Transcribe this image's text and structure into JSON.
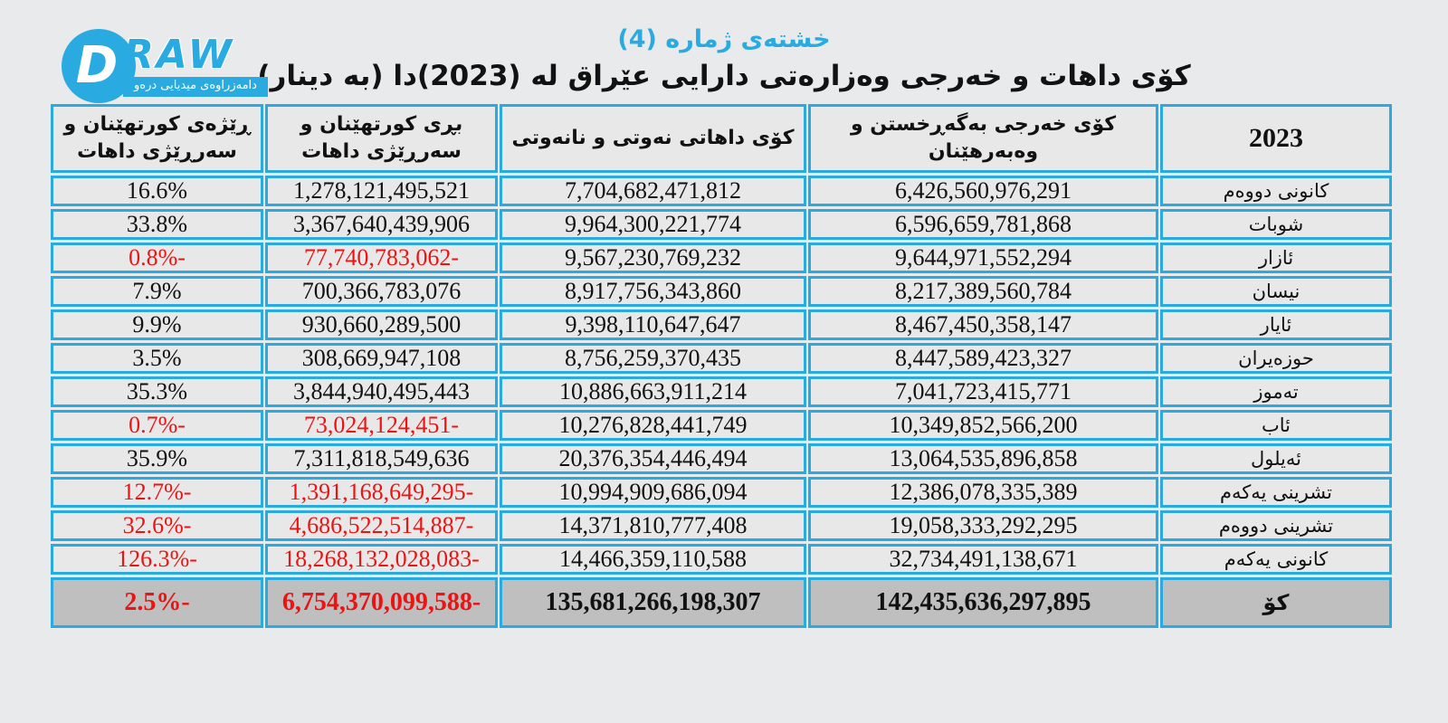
{
  "logo": {
    "d": "D",
    "raw": "RAW",
    "banner": "دامەزراوەی میدیایی درەو"
  },
  "header": {
    "table_number": "خشتەی ژمارە (4)",
    "title": "کۆی داهات و خەرجی وەزارەتی دارایی عێراق لە (2023)دا (بە دینار)"
  },
  "colors": {
    "accent_blue": "#29abe2",
    "negative_red": "#ec1313",
    "total_row_bg": "#bfbfbf",
    "cell_bg": "#e8e8e8",
    "page_bg": "#e9eaeb"
  },
  "table": {
    "columns": [
      {
        "key": "month",
        "label": "2023"
      },
      {
        "key": "expenses",
        "label": "کۆی خەرجی بەگەڕخستن و وەبەرهێنان"
      },
      {
        "key": "revenue",
        "label": "کۆی داهاتی نەوتی و نانەوتی"
      },
      {
        "key": "amount",
        "label": "بڕی کورتهێنان و سەرڕێژی داهات"
      },
      {
        "key": "rate",
        "label": "ڕێژەی کورتهێنان و سەرڕێژی داهات"
      }
    ],
    "rows": [
      {
        "month": "کانونی دووەم",
        "expenses": "6,426,560,976,291",
        "revenue": "7,704,682,471,812",
        "amount": "1,278,121,495,521",
        "rate": "16.6%",
        "negative": false
      },
      {
        "month": "شوبات",
        "expenses": "6,596,659,781,868",
        "revenue": "9,964,300,221,774",
        "amount": "3,367,640,439,906",
        "rate": "33.8%",
        "negative": false
      },
      {
        "month": "ئازار",
        "expenses": "9,644,971,552,294",
        "revenue": "9,567,230,769,232",
        "amount": "-77,740,783,062",
        "rate": "-0.8%",
        "negative": true
      },
      {
        "month": "نیسان",
        "expenses": "8,217,389,560,784",
        "revenue": "8,917,756,343,860",
        "amount": "700,366,783,076",
        "rate": "7.9%",
        "negative": false
      },
      {
        "month": "ئایار",
        "expenses": "8,467,450,358,147",
        "revenue": "9,398,110,647,647",
        "amount": "930,660,289,500",
        "rate": "9.9%",
        "negative": false
      },
      {
        "month": "حوزەیران",
        "expenses": "8,447,589,423,327",
        "revenue": "8,756,259,370,435",
        "amount": "308,669,947,108",
        "rate": "3.5%",
        "negative": false
      },
      {
        "month": "تەموز",
        "expenses": "7,041,723,415,771",
        "revenue": "10,886,663,911,214",
        "amount": "3,844,940,495,443",
        "rate": "35.3%",
        "negative": false
      },
      {
        "month": "ئاب",
        "expenses": "10,349,852,566,200",
        "revenue": "10,276,828,441,749",
        "amount": "-73,024,124,451",
        "rate": "-0.7%",
        "negative": true
      },
      {
        "month": "ئەیلول",
        "expenses": "13,064,535,896,858",
        "revenue": "20,376,354,446,494",
        "amount": "7,311,818,549,636",
        "rate": "35.9%",
        "negative": false
      },
      {
        "month": "تشرینی یەکەم",
        "expenses": "12,386,078,335,389",
        "revenue": "10,994,909,686,094",
        "amount": "-1,391,168,649,295",
        "rate": "-12.7%",
        "negative": true
      },
      {
        "month": "تشرینی دووەم",
        "expenses": "19,058,333,292,295",
        "revenue": "14,371,810,777,408",
        "amount": "-4,686,522,514,887",
        "rate": "-32.6%",
        "negative": true
      },
      {
        "month": "کانونی یەکەم",
        "expenses": "32,734,491,138,671",
        "revenue": "14,466,359,110,588",
        "amount": "-18,268,132,028,083",
        "rate": "-126.3%",
        "negative": true
      }
    ],
    "total": {
      "month": "کۆ",
      "expenses": "142,435,636,297,895",
      "revenue": "135,681,266,198,307",
      "amount": "-6,754,370,099,588",
      "rate": "-2.5%",
      "negative": true
    }
  }
}
